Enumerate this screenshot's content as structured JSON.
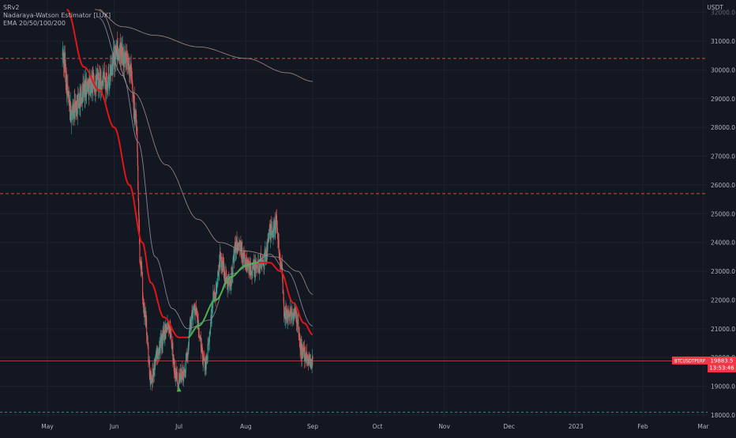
{
  "legend": {
    "line1": "SRv2",
    "line2": "Nadaraya-Watson Estimator [LUX]",
    "line3": "EMA 20/50/100/200"
  },
  "price_axis": {
    "unit": "USDT"
  },
  "symbol_tag": {
    "symbol": "BTCUSDTPERP",
    "price": "19883.5",
    "countdown": "13:53:46"
  },
  "colors": {
    "background": "#131722",
    "bull": "#26a69a",
    "bear": "#ef5350",
    "nwe_up": "#4caf50",
    "nwe_down": "#e01616",
    "ema_fast": "#8f8fa3",
    "ema_slow": "#a58a82",
    "resistance_line": "#ef5350",
    "support_line": "#26a69a",
    "tag_bg": "#f23645"
  },
  "chart_data": {
    "type": "candlestick",
    "ylim": [
      17800,
      32100
    ],
    "yticks": [
      18000,
      19000,
      20000,
      21000,
      22000,
      23000,
      24000,
      25000,
      26000,
      27000,
      28000,
      29000,
      30000,
      31000
    ],
    "yticks_partial": [
      32000
    ],
    "xtick_labels": [
      "May",
      "Jun",
      "Jul",
      "Aug",
      "Sep",
      "Oct",
      "Nov",
      "Dec",
      "2023",
      "Feb",
      "Mar"
    ],
    "xtick_dates": [
      "2022-05-01",
      "2022-06-01",
      "2022-07-01",
      "2022-08-01",
      "2022-09-01",
      "2022-10-01",
      "2022-11-01",
      "2022-12-01",
      "2023-01-01",
      "2023-02-01",
      "2023-03-01"
    ],
    "grid": true,
    "horizontal_levels": [
      {
        "value": 30400,
        "kind": "resistance"
      },
      {
        "value": 25700,
        "kind": "resistance"
      },
      {
        "value": 19883.5,
        "kind": "last_price"
      },
      {
        "value": 18100,
        "kind": "support"
      }
    ],
    "price_anchors": [
      [
        "2022-05-08",
        30500
      ],
      [
        "2022-05-12",
        28500
      ],
      [
        "2022-05-20",
        29500
      ],
      [
        "2022-05-28",
        29600
      ],
      [
        "2022-06-03",
        30600
      ],
      [
        "2022-06-08",
        30100
      ],
      [
        "2022-06-11",
        28500
      ],
      [
        "2022-06-13",
        23500
      ],
      [
        "2022-06-15",
        21500
      ],
      [
        "2022-06-18",
        19300
      ],
      [
        "2022-06-22",
        20400
      ],
      [
        "2022-06-26",
        21200
      ],
      [
        "2022-06-30",
        19300
      ],
      [
        "2022-07-03",
        19400
      ],
      [
        "2022-07-08",
        21700
      ],
      [
        "2022-07-13",
        19800
      ],
      [
        "2022-07-18",
        22300
      ],
      [
        "2022-07-20",
        23400
      ],
      [
        "2022-07-24",
        22600
      ],
      [
        "2022-07-28",
        23900
      ],
      [
        "2022-08-02",
        23200
      ],
      [
        "2022-08-05",
        23100
      ],
      [
        "2022-08-10",
        23500
      ],
      [
        "2022-08-12",
        24300
      ],
      [
        "2022-08-15",
        24700
      ],
      [
        "2022-08-17",
        23500
      ],
      [
        "2022-08-19",
        21500
      ],
      [
        "2022-08-24",
        21500
      ],
      [
        "2022-08-27",
        20200
      ],
      [
        "2022-08-31",
        19900
      ],
      [
        "2022-09-01",
        19883.5
      ]
    ],
    "nwe_anchors": [
      [
        "2022-05-10",
        32100
      ],
      [
        "2022-05-18",
        30100
      ],
      [
        "2022-05-25",
        29300
      ],
      [
        "2022-06-01",
        28000
      ],
      [
        "2022-06-08",
        26000
      ],
      [
        "2022-06-14",
        24000
      ],
      [
        "2022-06-18",
        22600
      ],
      [
        "2022-06-24",
        21400
      ],
      [
        "2022-07-01",
        20700
      ],
      [
        "2022-07-05",
        20700
      ],
      [
        "2022-07-10",
        21100
      ],
      [
        "2022-07-18",
        22000
      ],
      [
        "2022-07-25",
        22800
      ],
      [
        "2022-08-01",
        23200
      ],
      [
        "2022-08-07",
        23300
      ],
      [
        "2022-08-12",
        23300
      ],
      [
        "2022-08-17",
        23000
      ],
      [
        "2022-08-23",
        21900
      ],
      [
        "2022-08-28",
        21200
      ],
      [
        "2022-09-01",
        20800
      ]
    ],
    "nwe_turns": [
      {
        "date": "2022-07-05",
        "direction": "up"
      },
      {
        "date": "2022-08-07",
        "direction": "down"
      }
    ],
    "signal_marker": {
      "date": "2022-07-01",
      "value": 18870,
      "type": "buy"
    },
    "ema_fast_anchors": [
      [
        "2022-05-25",
        31800
      ],
      [
        "2022-06-05",
        29800
      ],
      [
        "2022-06-12",
        27500
      ],
      [
        "2022-06-20",
        23500
      ],
      [
        "2022-06-28",
        21700
      ],
      [
        "2022-07-05",
        21000
      ],
      [
        "2022-07-15",
        21300
      ],
      [
        "2022-07-25",
        22900
      ],
      [
        "2022-08-05",
        23300
      ],
      [
        "2022-08-12",
        23600
      ],
      [
        "2022-08-20",
        23000
      ],
      [
        "2022-09-01",
        21100
      ]
    ],
    "ema_slow_anchors": [
      [
        "2022-05-25",
        32100
      ],
      [
        "2022-06-10",
        29200
      ],
      [
        "2022-06-25",
        26700
      ],
      [
        "2022-07-10",
        24800
      ],
      [
        "2022-07-20",
        24000
      ],
      [
        "2022-08-01",
        23700
      ],
      [
        "2022-08-15",
        23500
      ],
      [
        "2022-08-25",
        23000
      ],
      [
        "2022-09-01",
        22200
      ]
    ],
    "ema_long_anchors": [
      [
        "2022-05-23",
        32100
      ],
      [
        "2022-06-05",
        31500
      ],
      [
        "2022-06-20",
        31200
      ],
      [
        "2022-07-10",
        30800
      ],
      [
        "2022-08-01",
        30400
      ],
      [
        "2022-08-20",
        29900
      ],
      [
        "2022-09-01",
        29600
      ]
    ]
  }
}
